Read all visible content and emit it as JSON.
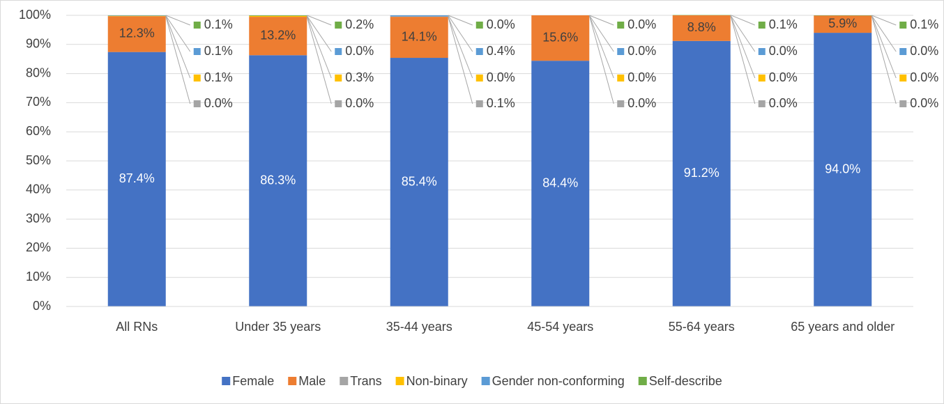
{
  "chart_data": {
    "type": "stacked_bar",
    "categories": [
      "All RNs",
      "Under 35 years",
      "35-44 years",
      "45-54 years",
      "55-64 years",
      "65 years and older"
    ],
    "series": [
      {
        "name": "Female",
        "color": "#4472c4",
        "values": [
          87.4,
          86.3,
          85.4,
          84.4,
          91.2,
          94.0
        ],
        "value_labels": [
          "87.4%",
          "86.3%",
          "85.4%",
          "84.4%",
          "91.2%",
          "94.0%"
        ]
      },
      {
        "name": "Male",
        "color": "#ed7d31",
        "values": [
          12.3,
          13.2,
          14.1,
          15.6,
          8.8,
          5.9
        ],
        "value_labels": [
          "12.3%",
          "13.2%",
          "14.1%",
          "15.6%",
          "8.8%",
          "5.9%"
        ]
      },
      {
        "name": "Trans",
        "color": "#a5a5a5",
        "values": [
          0.0,
          0.0,
          0.1,
          0.0,
          0.0,
          0.0
        ],
        "value_labels": [
          "0.0%",
          "0.0%",
          "0.1%",
          "0.0%",
          "0.0%",
          "0.0%"
        ]
      },
      {
        "name": "Non-binary",
        "color": "#ffc000",
        "values": [
          0.1,
          0.3,
          0.0,
          0.0,
          0.0,
          0.0
        ],
        "value_labels": [
          "0.1%",
          "0.3%",
          "0.0%",
          "0.0%",
          "0.0%",
          "0.0%"
        ]
      },
      {
        "name": "Gender non-conforming",
        "color": "#5b9bd5",
        "values": [
          0.1,
          0.0,
          0.4,
          0.0,
          0.0,
          0.0
        ],
        "value_labels": [
          "0.1%",
          "0.0%",
          "0.4%",
          "0.0%",
          "0.0%",
          "0.0%"
        ]
      },
      {
        "name": "Self-describe",
        "color": "#70ad47",
        "values": [
          0.1,
          0.2,
          0.0,
          0.0,
          0.1,
          0.1
        ],
        "value_labels": [
          "0.1%",
          "0.2%",
          "0.0%",
          "0.0%",
          "0.1%",
          "0.1%"
        ]
      }
    ],
    "ylim": [
      0,
      100
    ],
    "yticks": [
      {
        "value": 0,
        "label": "0%"
      },
      {
        "value": 10,
        "label": "10%"
      },
      {
        "value": 20,
        "label": "20%"
      },
      {
        "value": 30,
        "label": "30%"
      },
      {
        "value": 40,
        "label": "40%"
      },
      {
        "value": 50,
        "label": "50%"
      },
      {
        "value": 60,
        "label": "60%"
      },
      {
        "value": 70,
        "label": "70%"
      },
      {
        "value": 80,
        "label": "80%"
      },
      {
        "value": 90,
        "label": "90%"
      },
      {
        "value": 100,
        "label": "100%"
      }
    ],
    "grid": true,
    "legend": "bottom"
  }
}
